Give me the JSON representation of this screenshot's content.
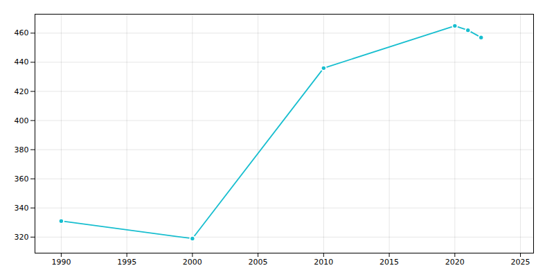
{
  "chart_data": {
    "type": "line",
    "x": [
      1990,
      2000,
      2010,
      2020,
      2021,
      2022
    ],
    "values": [
      331,
      319,
      436,
      465,
      462,
      457
    ],
    "color": "#17becf",
    "marker": "circle",
    "xlim": [
      1988,
      2026
    ],
    "ylim": [
      309,
      473
    ],
    "xticks": [
      1990,
      1995,
      2000,
      2005,
      2010,
      2015,
      2020,
      2025
    ],
    "yticks": [
      320,
      340,
      360,
      380,
      400,
      420,
      440,
      460
    ],
    "grid": true
  }
}
